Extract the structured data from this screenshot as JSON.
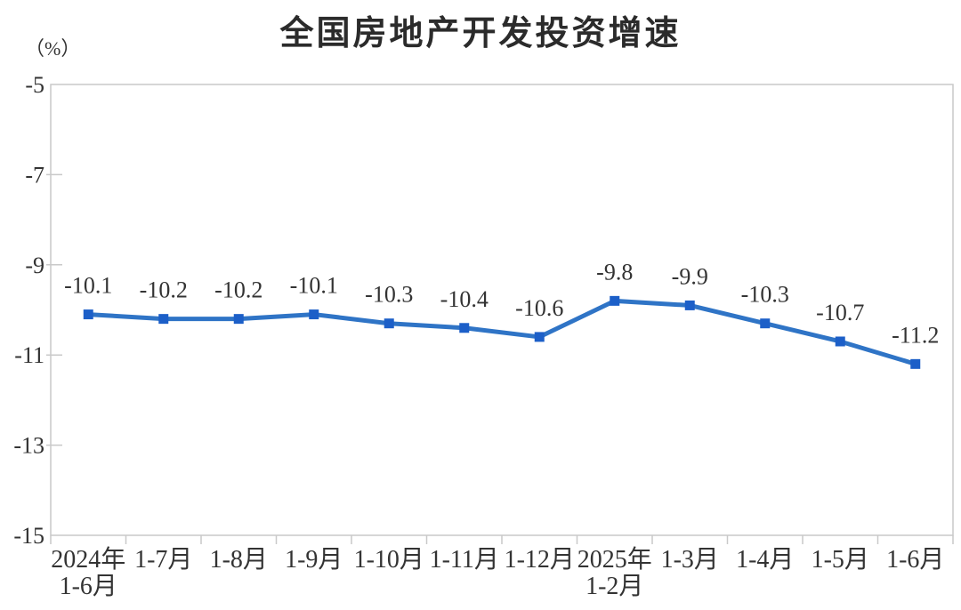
{
  "chart_data": {
    "type": "line",
    "title": "全国房地产开发投资增速",
    "unit_label": "（%）",
    "categories": [
      "2024年\n1-6月",
      "1-7月",
      "1-8月",
      "1-9月",
      "1-10月",
      "1-11月",
      "1-12月",
      "2025年\n1-2月",
      "1-3月",
      "1-4月",
      "1-5月",
      "1-6月"
    ],
    "values": [
      -10.1,
      -10.2,
      -10.2,
      -10.1,
      -10.3,
      -10.4,
      -10.6,
      -9.8,
      -9.9,
      -10.3,
      -10.7,
      -11.2
    ],
    "data_labels": [
      "-10.1",
      "-10.2",
      "-10.2",
      "-10.1",
      "-10.3",
      "-10.4",
      "-10.6",
      "-9.8",
      "-9.9",
      "-10.3",
      "-10.7",
      "-11.2"
    ],
    "y_ticks": [
      -5,
      -7,
      -9,
      -11,
      -13,
      -15
    ],
    "y_tick_labels": [
      "-5",
      "-7",
      "-9",
      "-11",
      "-13",
      "-15"
    ],
    "ylim": [
      -15,
      -5
    ],
    "grid": false,
    "legend": false,
    "marker": "square",
    "colors": {
      "line": "#2F74C6",
      "marker": "#1C5FC8",
      "axis": "#C9C9C9",
      "text": "#333333",
      "title": "#2B2B2B"
    }
  }
}
